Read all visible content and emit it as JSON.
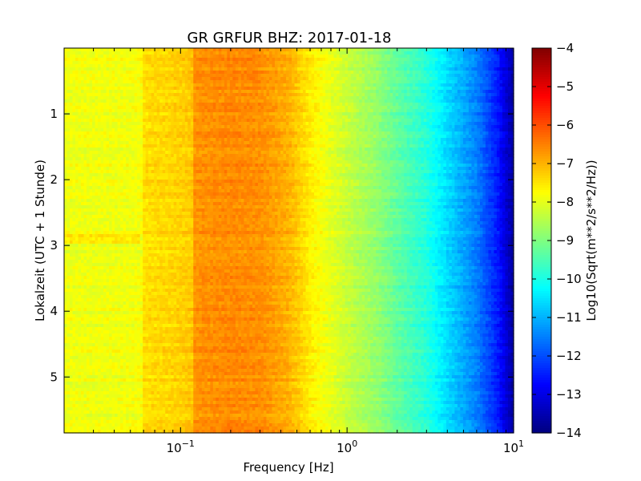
{
  "chart_data": {
    "type": "heatmap",
    "title": "GR GRFUR BHZ: 2017-01-18",
    "xlabel": "Frequency [Hz]",
    "ylabel": "Lokalzeit (UTC + 1 Stunde)",
    "x_scale": "log",
    "xlim": [
      0.02,
      10
    ],
    "ylim": [
      5.85,
      0
    ],
    "x_ticks": [
      {
        "value": 0.1,
        "base": "10",
        "exp": "−1"
      },
      {
        "value": 1,
        "base": "10",
        "exp": "0"
      },
      {
        "value": 10,
        "base": "10",
        "exp": "1"
      }
    ],
    "y_ticks": [
      {
        "value": 1,
        "label": "1"
      },
      {
        "value": 2,
        "label": "2"
      },
      {
        "value": 3,
        "label": "3"
      },
      {
        "value": 4,
        "label": "4"
      },
      {
        "value": 5,
        "label": "5"
      }
    ],
    "colorbar": {
      "label": "Log10(Sqrt(m**2/s**2/Hz))",
      "range": [
        -14,
        -4
      ],
      "colormap": "jet",
      "ticks": [
        {
          "value": -4,
          "label": "−4"
        },
        {
          "value": -5,
          "label": "−5"
        },
        {
          "value": -6,
          "label": "−6"
        },
        {
          "value": -7,
          "label": "−7"
        },
        {
          "value": -8,
          "label": "−8"
        },
        {
          "value": -9,
          "label": "−9"
        },
        {
          "value": -10,
          "label": "−10"
        },
        {
          "value": -11,
          "label": "−11"
        },
        {
          "value": -12,
          "label": "−12"
        },
        {
          "value": -13,
          "label": "−13"
        },
        {
          "value": -14,
          "label": "−14"
        }
      ]
    },
    "frequency_profile": {
      "frequencies_hz": [
        0.02,
        0.04,
        0.058,
        0.06,
        0.1,
        0.119,
        0.12,
        0.2,
        0.3,
        0.45,
        0.6,
        0.8,
        1.0,
        1.5,
        2.0,
        3.0,
        4.0,
        6.0,
        8.0,
        10.0
      ],
      "log10_amplitude": [
        -7.9,
        -7.9,
        -7.85,
        -7.45,
        -7.3,
        -7.2,
        -6.7,
        -6.6,
        -6.65,
        -7.0,
        -7.6,
        -8.0,
        -8.3,
        -8.8,
        -9.3,
        -9.9,
        -10.6,
        -11.5,
        -12.5,
        -13.7
      ]
    },
    "n_time_rows": 120,
    "n_freq_bins": 160
  }
}
